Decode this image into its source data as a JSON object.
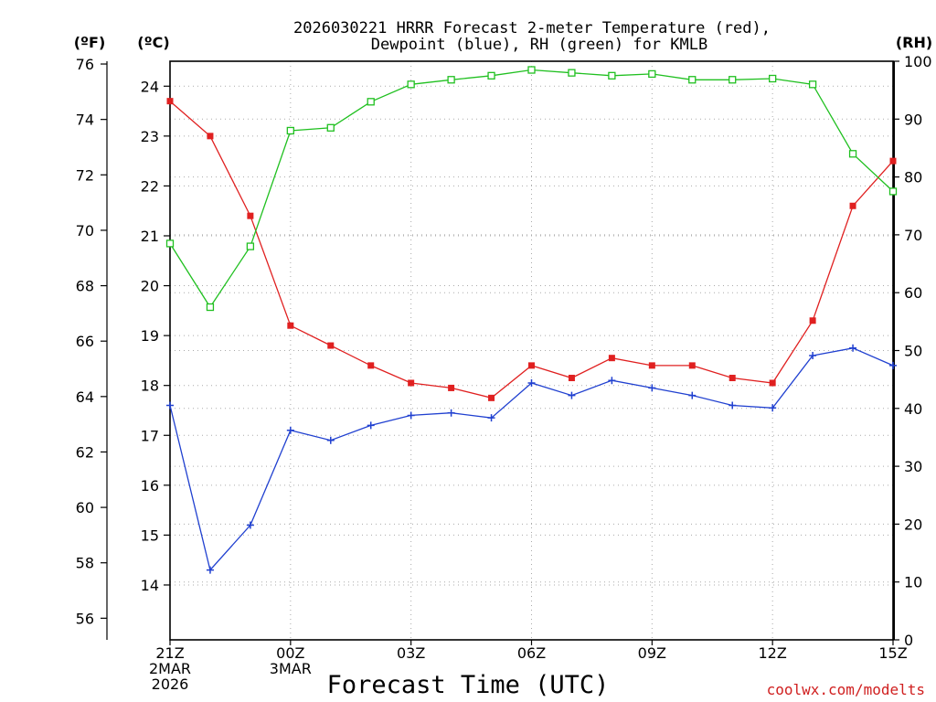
{
  "chart_data": {
    "type": "line",
    "title": [
      "2026030221 HRRR Forecast 2-meter Temperature (red),",
      "Dewpoint (blue), RH (green) for KMLB"
    ],
    "xlabel": "Forecast Time (UTC)",
    "credit": "coolwx.com/modelts",
    "units": {
      "f": "(ºF)",
      "c": "(ºC)",
      "rh": "(RH)"
    },
    "x_hours": [
      0,
      1,
      2,
      3,
      4,
      5,
      6,
      7,
      8,
      9,
      10,
      11,
      12,
      13,
      14,
      15,
      16,
      17,
      18
    ],
    "x_ticks": [
      {
        "hour": 0,
        "lines": [
          "21Z",
          "2MAR",
          "2026"
        ]
      },
      {
        "hour": 3,
        "lines": [
          "00Z",
          "3MAR"
        ]
      },
      {
        "hour": 6,
        "lines": [
          "03Z"
        ]
      },
      {
        "hour": 9,
        "lines": [
          "06Z"
        ]
      },
      {
        "hour": 12,
        "lines": [
          "09Z"
        ]
      },
      {
        "hour": 15,
        "lines": [
          "12Z"
        ]
      },
      {
        "hour": 18,
        "lines": [
          "15Z"
        ]
      }
    ],
    "xlim": [
      0,
      18
    ],
    "axes": {
      "celsius": {
        "min": 12.9,
        "max": 24.5,
        "ticks": [
          14,
          15,
          16,
          17,
          18,
          19,
          20,
          21,
          22,
          23,
          24
        ]
      },
      "fahrenheit": {
        "ticks": [
          56,
          58,
          60,
          62,
          64,
          66,
          68,
          70,
          72,
          74,
          76
        ]
      },
      "rh": {
        "min": 0,
        "max": 100,
        "ticks": [
          0,
          10,
          20,
          30,
          40,
          50,
          60,
          70,
          80,
          90,
          100
        ]
      }
    },
    "grid": true,
    "series": [
      {
        "name": "Temperature",
        "unit": "C",
        "color": "#e02020",
        "marker": "filled-square",
        "values": [
          23.7,
          23.0,
          21.4,
          19.2,
          18.8,
          18.4,
          18.05,
          17.95,
          17.75,
          18.4,
          18.15,
          18.55,
          18.4,
          18.4,
          18.15,
          18.05,
          19.3,
          21.6,
          22.5
        ]
      },
      {
        "name": "Dewpoint",
        "unit": "C",
        "color": "#2040d0",
        "marker": "plus",
        "values": [
          17.6,
          14.3,
          15.2,
          17.1,
          16.9,
          17.2,
          17.4,
          17.45,
          17.35,
          18.05,
          17.8,
          18.1,
          17.95,
          17.8,
          17.6,
          17.55,
          18.6,
          18.75,
          18.4
        ]
      },
      {
        "name": "RH",
        "unit": "%",
        "color": "#20c020",
        "marker": "open-square",
        "values": [
          68.5,
          57.5,
          68.0,
          88.0,
          88.5,
          93.0,
          96.0,
          96.8,
          97.5,
          98.5,
          98.0,
          97.5,
          97.8,
          96.8,
          96.8,
          97.0,
          96.0,
          84.0,
          77.5
        ]
      }
    ]
  }
}
